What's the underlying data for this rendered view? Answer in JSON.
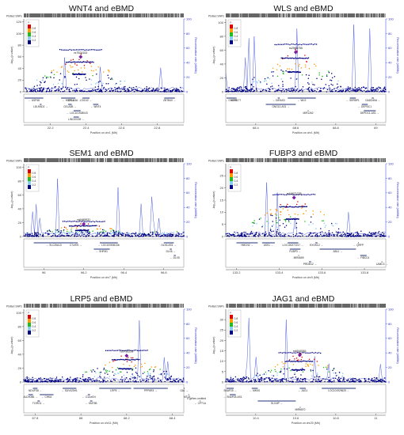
{
  "chart_data": [
    {
      "type": "scatter",
      "title": "WNT4 and eBMD",
      "strip_label": "Plotted SNPs",
      "ylabel": "-log₁₀(p-value)",
      "y2label": "Recombination rate (cM/Mb)",
      "xlabel": "Position on chr1 (Mb)",
      "xlim": [
        22.05,
        22.95
      ],
      "ylim": [
        0,
        125
      ],
      "y2lim": [
        0,
        100
      ],
      "xticks": [
        22.2,
        22.4,
        22.6,
        22.8
      ],
      "yticks": [
        0,
        20,
        40,
        60,
        80,
        100,
        120
      ],
      "y2ticks": [
        0,
        20,
        40,
        60,
        80,
        100
      ],
      "lead_snp": {
        "label": "rs7524102",
        "x": 22.37,
        "y": 60
      },
      "genes": [
        {
          "name": "USP48",
          "start": 22.05,
          "end": 22.16,
          "row": 0,
          "dir": "<-"
        },
        {
          "name": "HSPG2",
          "start": 22.26,
          "end": 22.34,
          "row": 0,
          "dir": "<-"
        },
        {
          "name": "CELA3A",
          "start": 22.33,
          "end": 22.34,
          "row": 0,
          "dir": "->"
        },
        {
          "name": "CDC42",
          "start": 22.38,
          "end": 22.42,
          "row": 0,
          "dir": "->"
        },
        {
          "name": "ZBTB40",
          "start": 22.84,
          "end": 22.9,
          "row": 0,
          "dir": "->"
        },
        {
          "name": "LDLRAD2",
          "start": 22.14,
          "end": 22.15,
          "row": 1,
          "dir": "->"
        },
        {
          "name": "CELA3B",
          "start": 22.3,
          "end": 22.32,
          "row": 1,
          "dir": "->"
        },
        {
          "name": "WNT4",
          "start": 22.44,
          "end": 22.47,
          "row": 1,
          "dir": "<-"
        },
        {
          "name": "LOC101928043",
          "start": 22.33,
          "end": 22.37,
          "row": 2,
          "dir": "<-"
        },
        {
          "name": "LINC00339",
          "start": 22.33,
          "end": 22.36,
          "row": 3,
          "dir": "->"
        }
      ]
    },
    {
      "type": "scatter",
      "title": "WLS and eBMD",
      "strip_label": "Plotted SNPs",
      "ylabel": "-log₁₀(p-value)",
      "y2label": "Recombination rate (cM/Mb)",
      "xlabel": "Position on chr1 (Mb)",
      "xlim": [
        68.25,
        69.05
      ],
      "ylim": [
        0,
        105
      ],
      "y2lim": [
        0,
        100
      ],
      "xticks": [
        68.4,
        68.6,
        68.8,
        69
      ],
      "yticks": [
        0,
        20,
        40,
        60,
        80,
        100
      ],
      "y2ticks": [
        0,
        20,
        40,
        60,
        80,
        100
      ],
      "lead_snp": {
        "label": "rs2566755",
        "x": 68.6,
        "y": 57
      },
      "genes": [
        {
          "name": "GNG12",
          "start": 68.25,
          "end": 68.3,
          "row": 0,
          "dir": "<-"
        },
        {
          "name": "GPR177",
          "start": 68.3,
          "end": 68.3,
          "row": 0,
          "dir": ""
        },
        {
          "name": "DIRAS3",
          "start": 68.51,
          "end": 68.52,
          "row": 0,
          "dir": "<-"
        },
        {
          "name": "WLS",
          "start": 68.56,
          "end": 68.7,
          "row": 0,
          "dir": "<-"
        },
        {
          "name": "SERBP1",
          "start": 68.87,
          "end": 68.9,
          "row": 0,
          "dir": "<-"
        },
        {
          "name": "GADD45A",
          "start": 68.98,
          "end": 68.99,
          "row": 0,
          "dir": "->"
        },
        {
          "name": "GNG12-AS1",
          "start": 68.45,
          "end": 68.6,
          "row": 1,
          "dir": "->"
        },
        {
          "name": "DEPDC1",
          "start": 68.93,
          "end": 68.96,
          "row": 1,
          "dir": "<-"
        },
        {
          "name": "MIR1262",
          "start": 68.66,
          "end": 68.66,
          "row": 2,
          "dir": ""
        },
        {
          "name": "DEPDC1-AS1",
          "start": 68.94,
          "end": 69.0,
          "row": 2,
          "dir": "->"
        }
      ]
    },
    {
      "type": "scatter",
      "title": "SEM1 and eBMD",
      "strip_label": "Plotted SNPs",
      "ylabel": "-log₁₀(p-value)",
      "y2label": "Recombination rate (cM/Mb)",
      "xlabel": "Position on chr7 (Mb)",
      "xlim": [
        95.9,
        96.7
      ],
      "ylim": [
        0,
        105
      ],
      "y2lim": [
        0,
        100
      ],
      "xticks": [
        96,
        96.2,
        96.4,
        96.6
      ],
      "yticks": [
        0,
        20,
        40,
        60,
        80,
        100
      ],
      "y2ticks": [
        0,
        20,
        40,
        60,
        80,
        100
      ],
      "lead_snp": {
        "label": "rs6465531",
        "x": 96.2,
        "y": 18
      },
      "genes": [
        {
          "name": "SLC25A13",
          "start": 95.95,
          "end": 96.15,
          "row": 0,
          "dir": "<-"
        },
        {
          "name": "C7orf76",
          "start": 96.15,
          "end": 96.17,
          "row": 0,
          "dir": "->"
        },
        {
          "name": "LOC100506136",
          "start": 96.28,
          "end": 96.37,
          "row": 0,
          "dir": "<-"
        },
        {
          "name": "DLX6-AS1",
          "start": 96.6,
          "end": 96.65,
          "row": 0,
          "dir": "->"
        },
        {
          "name": "SHFM1",
          "start": 96.25,
          "end": 96.33,
          "row": 1,
          "dir": "<-"
        },
        {
          "name": "DLX6",
          "start": 96.63,
          "end": 96.64,
          "row": 1,
          "dir": "->"
        },
        {
          "name": "DLX5",
          "start": 96.65,
          "end": 96.66,
          "row": 2,
          "dir": "<-"
        }
      ]
    },
    {
      "type": "scatter",
      "title": "FUBP3 and eBMD",
      "strip_label": "Plotted SNPs",
      "ylabel": "-log₁₀(p-value)",
      "y2label": "Recombination rate (cM/Mb)",
      "xlabel": "Position on chr9 (Mb)",
      "xlim": [
        133.15,
        133.9
      ],
      "ylim": [
        0,
        30
      ],
      "y2lim": [
        0,
        100
      ],
      "xticks": [
        133.2,
        133.4,
        133.6,
        133.8
      ],
      "yticks": [
        0,
        5,
        10,
        15,
        20,
        25
      ],
      "y2ticks": [
        0,
        20,
        40,
        60,
        80,
        100
      ],
      "lead_snp": {
        "label": "rs10871225",
        "x": 133.47,
        "y": 16
      },
      "genes": [
        {
          "name": "HMCN2",
          "start": 133.2,
          "end": 133.3,
          "row": 0,
          "dir": "->"
        },
        {
          "name": "ASS1",
          "start": 133.32,
          "end": 133.38,
          "row": 0,
          "dir": "->"
        },
        {
          "name": "LOC100272217",
          "start": 133.44,
          "end": 133.49,
          "row": 0,
          "dir": "->"
        },
        {
          "name": "EXOSC2",
          "start": 133.57,
          "end": 133.58,
          "row": 0,
          "dir": "->"
        },
        {
          "name": "QRFP",
          "start": 133.77,
          "end": 133.77,
          "row": 0,
          "dir": "<-"
        },
        {
          "name": "FUBP3",
          "start": 133.45,
          "end": 133.5,
          "row": 1,
          "dir": "->"
        },
        {
          "name": "ABL1",
          "start": 133.59,
          "end": 133.76,
          "row": 1,
          "dir": "->"
        },
        {
          "name": "MIR4669",
          "start": 133.49,
          "end": 133.49,
          "row": 2,
          "dir": ""
        },
        {
          "name": "FIBCD1",
          "start": 133.78,
          "end": 133.81,
          "row": 2,
          "dir": "<-"
        },
        {
          "name": "PRDM12",
          "start": 133.54,
          "end": 133.55,
          "row": 3,
          "dir": "->"
        },
        {
          "name": "LAMC3",
          "start": 133.88,
          "end": 133.88,
          "row": 3,
          "dir": "->"
        }
      ]
    },
    {
      "type": "scatter",
      "title": "LRP5 and eBMD",
      "strip_label": "Plotted SNPs",
      "ylabel": "-log₁₀(p-value)",
      "y2label": "Recombination rate (cM/Mb)",
      "xlabel": "Position on chr11 (Mb)",
      "xlim": [
        67.75,
        68.45
      ],
      "ylim": [
        0,
        105
      ],
      "y2lim": [
        0,
        100
      ],
      "xticks": [
        67.8,
        68,
        68.2,
        68.4
      ],
      "yticks": [
        0,
        20,
        40,
        60,
        80,
        100
      ],
      "y2ticks": [
        0,
        20,
        40,
        60,
        80,
        100
      ],
      "lead_snp": {
        "label": "rs3736228",
        "x": 68.2,
        "y": 38
      },
      "note": "5 genes omitted",
      "genes": [
        {
          "name": "NDUFS8",
          "start": 67.79,
          "end": 67.81,
          "row": 0,
          "dir": "->"
        },
        {
          "name": "SUV420H1",
          "start": 67.92,
          "end": 67.98,
          "row": 0,
          "dir": "<-"
        },
        {
          "name": "LRP5",
          "start": 68.08,
          "end": 68.22,
          "row": 0,
          "dir": "->"
        },
        {
          "name": "PPP6R3",
          "start": 68.23,
          "end": 68.38,
          "row": 0,
          "dir": "->"
        },
        {
          "name": "GAL",
          "start": 68.45,
          "end": 68.46,
          "row": 0,
          "dir": "->"
        },
        {
          "name": "ALDH3B1",
          "start": 67.77,
          "end": 67.79,
          "row": 1,
          "dir": "->"
        },
        {
          "name": "CHKA",
          "start": 67.82,
          "end": 67.88,
          "row": 1,
          "dir": "<-"
        },
        {
          "name": "TCIRG1",
          "start": 67.81,
          "end": 67.82,
          "row": 2,
          "dir": "->"
        },
        {
          "name": "C11orf24",
          "start": 68.03,
          "end": 68.04,
          "row": 1,
          "dir": "<-"
        },
        {
          "name": "KMT5B",
          "start": 68.04,
          "end": 68.05,
          "row": 2,
          "dir": "<-"
        },
        {
          "name": "MTL5",
          "start": 68.47,
          "end": 68.51,
          "row": 1,
          "dir": "->"
        },
        {
          "name": "CPT1A",
          "start": 68.52,
          "end": 68.61,
          "row": 2,
          "dir": "<-"
        }
      ]
    },
    {
      "type": "scatter",
      "title": "JAG1 and eBMD",
      "strip_label": "Plotted SNPs",
      "ylabel": "-log₁₀(p-value)",
      "y2label": "Recombination rate (cM/Mb)",
      "xlabel": "Position on chr20 (Mb)",
      "xlim": [
        10.25,
        11.05
      ],
      "ylim": [
        0,
        35
      ],
      "y2lim": [
        0,
        100
      ],
      "xticks": [
        10.4,
        10.6,
        10.8,
        11
      ],
      "yticks": [
        0,
        5,
        10,
        15,
        20,
        25,
        30
      ],
      "y2ticks": [
        0,
        20,
        40,
        60,
        80,
        100
      ],
      "lead_snp": {
        "label": "rs6040061",
        "x": 10.62,
        "y": 13
      },
      "genes": [
        {
          "name": "SNAP25",
          "start": 10.2,
          "end": 10.29,
          "row": 0,
          "dir": "->"
        },
        {
          "name": "MKKS",
          "start": 10.38,
          "end": 10.41,
          "row": 0,
          "dir": "<-"
        },
        {
          "name": "JAG1",
          "start": 10.62,
          "end": 10.65,
          "row": 0,
          "dir": "<-"
        },
        {
          "name": "LOC101929625",
          "start": 10.73,
          "end": 10.9,
          "row": 0,
          "dir": "->"
        },
        {
          "name": "SNAP25-AS1",
          "start": 10.27,
          "end": 10.3,
          "row": 1,
          "dir": "<-"
        },
        {
          "name": "SLX4IP",
          "start": 10.41,
          "end": 10.6,
          "row": 2,
          "dir": "->"
        },
        {
          "name": "MIR6870",
          "start": 10.62,
          "end": 10.62,
          "row": 3,
          "dir": ""
        }
      ]
    }
  ],
  "legend": {
    "title": "r²",
    "levels": [
      "0.8",
      "0.6",
      "0.4",
      "0.2"
    ],
    "colors": [
      "#dd0000",
      "#ff9900",
      "#22bb22",
      "#88ccee",
      "#000080"
    ]
  },
  "colors": {
    "recomb_line": "#3344dd",
    "lead_snp": "#7a1fa2",
    "default_snp": "#000080",
    "axis": "#222222"
  }
}
